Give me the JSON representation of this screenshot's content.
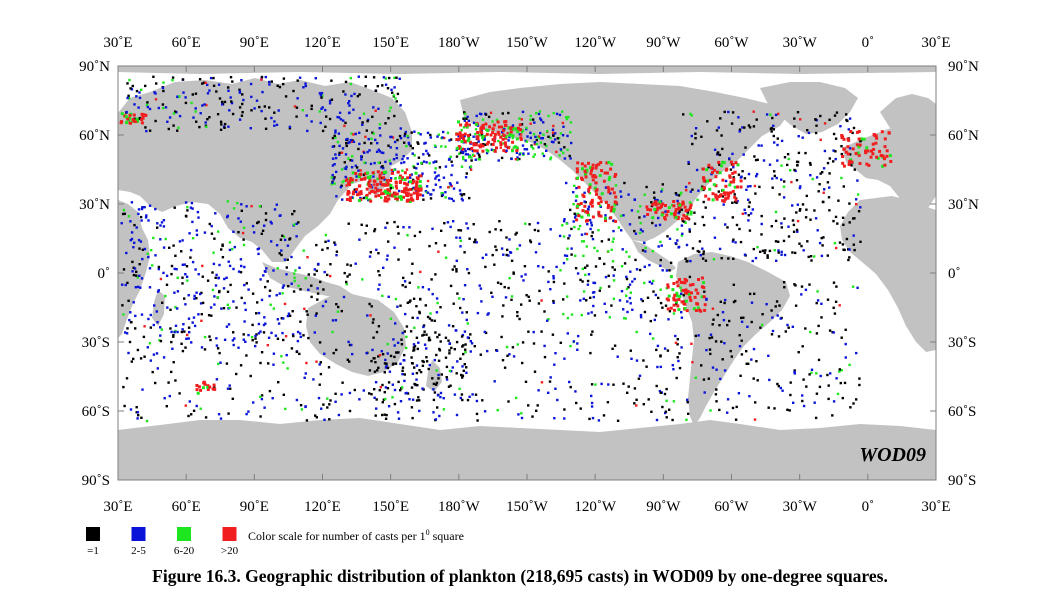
{
  "figure": {
    "caption": "Figure 16.3. Geographic distribution of plankton (218,695 casts) in WOD09 by one-degree squares.",
    "watermark": "WOD09"
  },
  "axes": {
    "lon_labels": [
      "30˚E",
      "60˚E",
      "90˚E",
      "120˚E",
      "150˚E",
      "180˚W",
      "150˚W",
      "120˚W",
      "90˚W",
      "60˚W",
      "30˚W",
      "0˚",
      "30˚E"
    ],
    "lat_labels": [
      "90˚N",
      "60˚N",
      "30˚N",
      "0˚",
      "30˚S",
      "60˚S",
      "90˚S"
    ],
    "lon_range": [
      "30˚E",
      "30˚E"
    ],
    "lat_range": [
      "90˚S",
      "90˚N"
    ]
  },
  "legend": {
    "title": "Color scale for number of casts per 1",
    "title_superscript": "0",
    "title_suffix": " square",
    "items": [
      {
        "label": "=1",
        "color": "#000000"
      },
      {
        "label": "2-5",
        "color": "#0a14d8"
      },
      {
        "label": "6-20",
        "color": "#1ee61e"
      },
      {
        "label": ">20",
        "color": "#f01e1e"
      }
    ]
  },
  "colors": {
    "ocean": "#ffffff",
    "land": "#c2c2c2",
    "frame": "#7f7f7f"
  }
}
